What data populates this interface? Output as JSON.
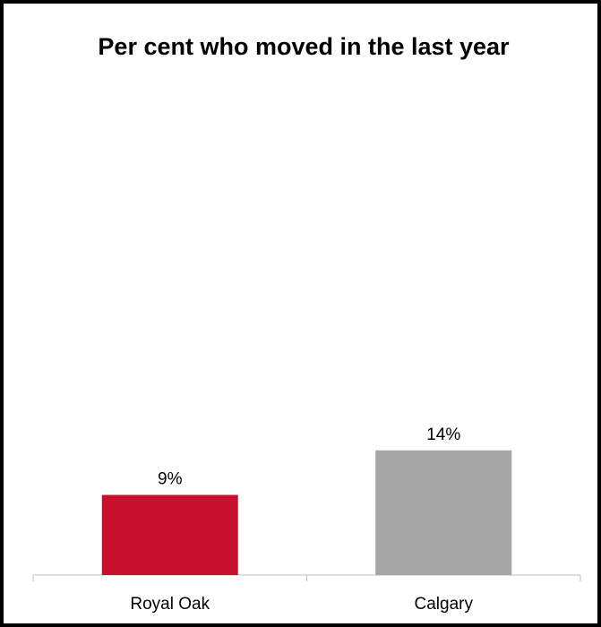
{
  "chart_data": {
    "type": "bar",
    "title": "Per cent who moved in the last year",
    "categories": [
      "Royal Oak",
      "Calgary"
    ],
    "values": [
      9,
      14
    ],
    "value_labels": [
      "9%",
      "14%"
    ],
    "colors": [
      "#C8102E",
      "#A6A6A6"
    ],
    "xlabel": "",
    "ylabel": "",
    "ylim": [
      0,
      50
    ],
    "grid": false,
    "legend": "none"
  }
}
